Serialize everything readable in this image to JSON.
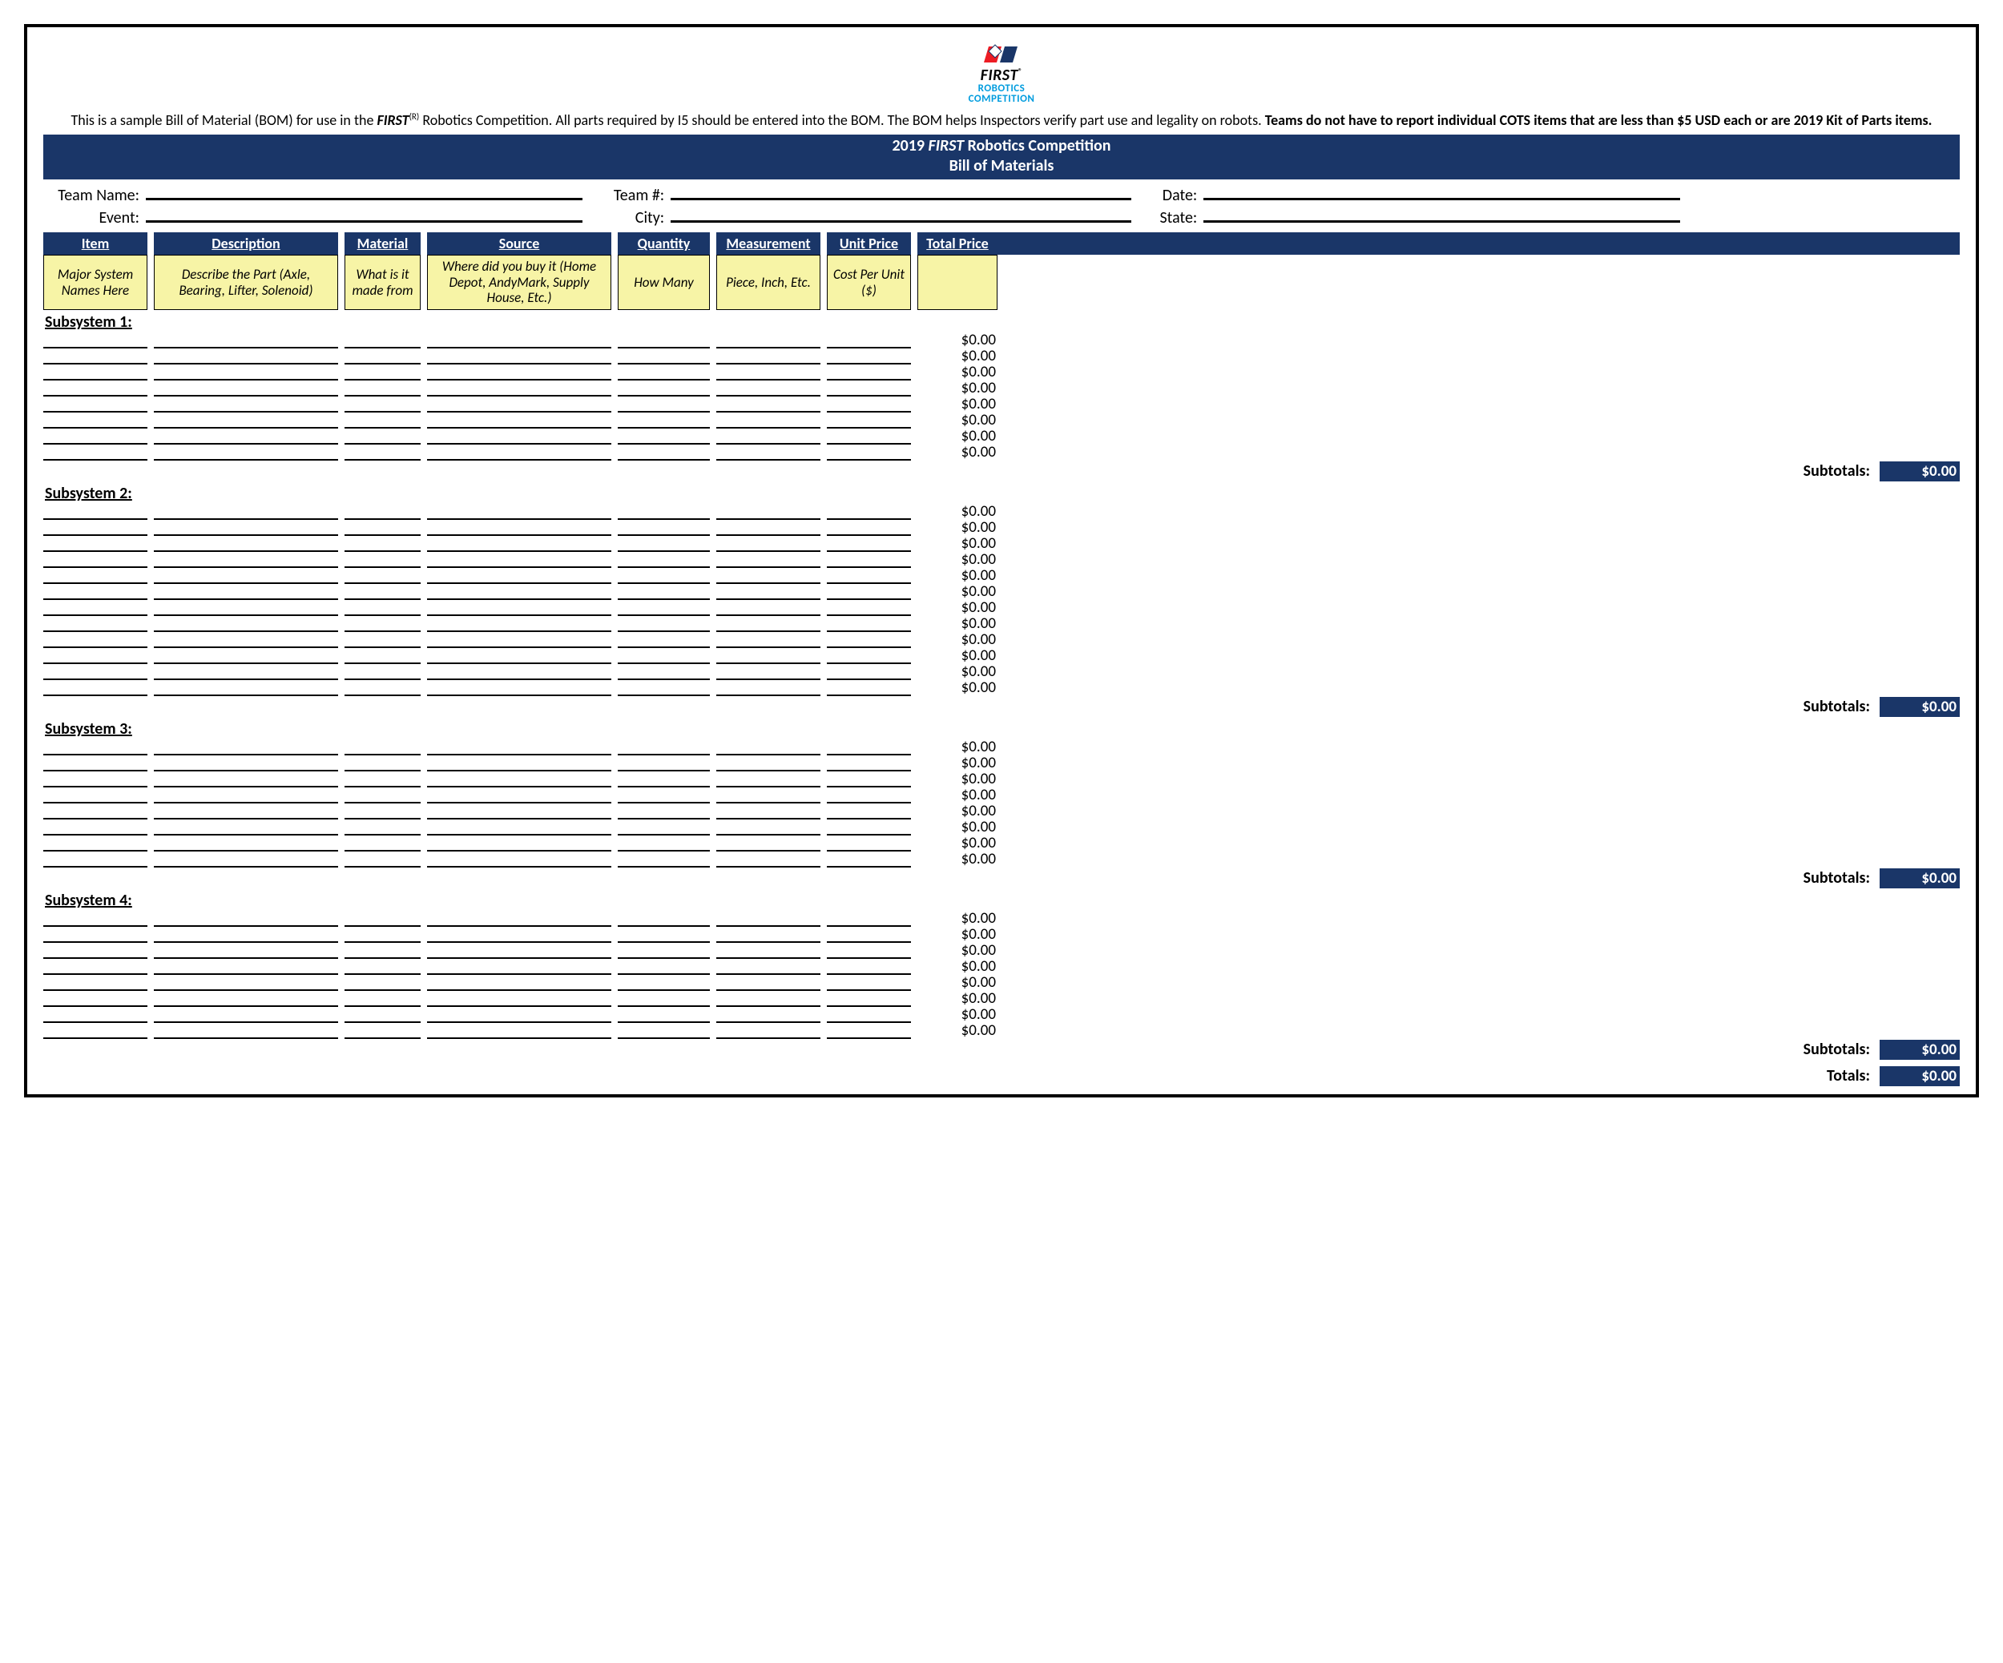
{
  "colors": {
    "navy": "#1a3668",
    "hint_bg": "#f7f4a6",
    "logo_blue": "#009cde",
    "logo_red": "#ed1c24",
    "border": "#000000",
    "page_bg": "#ffffff",
    "text": "#000000"
  },
  "logo": {
    "first": "FIRST",
    "sub1": "ROBOTICS",
    "sub2": "COMPETITION"
  },
  "intro": {
    "prefix": "This is a sample Bill of Material (BOM) for use in the ",
    "first": "FIRST",
    "sup": "(R)",
    "mid": " Robotics Competition. All parts required by I5 should be entered into the BOM. The BOM helps Inspectors verify part use and legality on robots. ",
    "bold": "Teams do not have to report individual COTS items that are less than $5 USD each or are 2019 Kit of Parts items."
  },
  "banner": {
    "line1_pre": "2019 ",
    "line1_first": "FIRST",
    "line1_post": " Robotics Competition",
    "line2": "Bill of Materials"
  },
  "form": {
    "team_name": "Team Name:",
    "event": "Event:",
    "team_num": "Team #:",
    "city": "City:",
    "date": "Date:",
    "state": "State:"
  },
  "headers": {
    "item": "Item",
    "description": "Description",
    "material": "Material",
    "source": "Source",
    "quantity": "Quantity",
    "measurement": "Measurement",
    "unit_price": "Unit Price",
    "total_price": "Total Price"
  },
  "hints": {
    "item": "Major System Names Here",
    "description": "Describe the Part (Axle, Bearing, Lifter, Solenoid)",
    "material": "What is it made from",
    "source": "Where did you buy it (Home Depot, AndyMark, Supply House, Etc.)",
    "quantity": "How Many",
    "measurement": "Piece, Inch, Etc.",
    "unit_price": "Cost Per Unit ($)",
    "total_price": ""
  },
  "subsystems": [
    {
      "label": "Subsystem 1:",
      "rows": 8,
      "subtotal": "$0.00"
    },
    {
      "label": "Subsystem 2:",
      "rows": 12,
      "subtotal": "$0.00"
    },
    {
      "label": "Subsystem 3:",
      "rows": 8,
      "subtotal": "$0.00"
    },
    {
      "label": "Subsystem 4:",
      "rows": 8,
      "subtotal": "$0.00"
    }
  ],
  "row_total_default": "$0.00",
  "subtotals_label": "Subtotals:",
  "totals_label": "Totals:",
  "grand_total": "$0.00"
}
